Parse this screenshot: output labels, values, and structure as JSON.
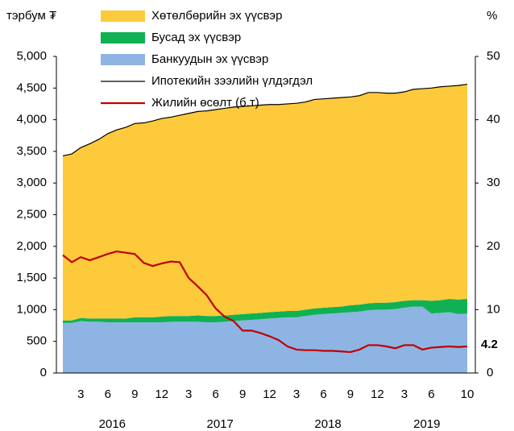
{
  "chart_data": {
    "type": "stacked-area-line",
    "y_unit_label": "тэрбум ₮",
    "y2_unit_label": "%",
    "categories": [
      null,
      null,
      "3",
      null,
      null,
      "6",
      null,
      null,
      "9",
      null,
      null,
      "12",
      null,
      null,
      "3",
      null,
      null,
      "6",
      null,
      null,
      "9",
      null,
      null,
      "12",
      null,
      null,
      "3",
      null,
      null,
      "6",
      null,
      null,
      "9",
      null,
      null,
      "12",
      null,
      null,
      "3",
      null,
      null,
      "6",
      null,
      null,
      null,
      "10"
    ],
    "years": [
      "2016",
      "2017",
      "2018",
      "2019"
    ],
    "series": [
      {
        "name": "Хөтөлбөрийн эх үүсвэр",
        "kind": "area",
        "color": "#fcca3a",
        "values": [
          2600,
          2630,
          2690,
          2760,
          2830,
          2920,
          2980,
          3020,
          3060,
          3070,
          3100,
          3130,
          3140,
          3170,
          3200,
          3220,
          3240,
          3260,
          3270,
          3280,
          3280,
          3280,
          3280,
          3280,
          3270,
          3270,
          3280,
          3280,
          3300,
          3300,
          3300,
          3300,
          3290,
          3300,
          3330,
          3320,
          3310,
          3300,
          3300,
          3330,
          3340,
          3360,
          3370,
          3360,
          3380,
          3390
        ]
      },
      {
        "name": "Бусад эх үүсвэр",
        "kind": "area",
        "color": "#10b153",
        "values": [
          40,
          40,
          50,
          50,
          50,
          60,
          60,
          60,
          80,
          80,
          80,
          90,
          90,
          90,
          90,
          100,
          100,
          100,
          100,
          100,
          100,
          100,
          100,
          100,
          100,
          100,
          100,
          100,
          100,
          100,
          100,
          100,
          110,
          110,
          110,
          110,
          110,
          110,
          110,
          100,
          100,
          200,
          200,
          210,
          230,
          230
        ]
      },
      {
        "name": "Банкуудын эх үүсвэр",
        "kind": "area",
        "color": "#8eb4e3",
        "values": [
          790,
          790,
          820,
          810,
          810,
          800,
          800,
          800,
          800,
          800,
          800,
          800,
          810,
          810,
          810,
          810,
          800,
          800,
          810,
          820,
          830,
          840,
          850,
          860,
          870,
          880,
          880,
          900,
          920,
          930,
          940,
          950,
          960,
          970,
          990,
          1000,
          1000,
          1010,
          1030,
          1050,
          1050,
          940,
          950,
          960,
          930,
          940
        ]
      },
      {
        "name": "Ипотекийн зээлийн үлдэгдэл",
        "kind": "line",
        "color": "#000000",
        "values": [
          3430,
          3460,
          3560,
          3620,
          3690,
          3780,
          3840,
          3880,
          3940,
          3950,
          3980,
          4020,
          4040,
          4070,
          4100,
          4130,
          4140,
          4160,
          4180,
          4200,
          4210,
          4220,
          4230,
          4240,
          4240,
          4250,
          4260,
          4280,
          4320,
          4330,
          4340,
          4350,
          4360,
          4380,
          4430,
          4430,
          4420,
          4420,
          4440,
          4480,
          4490,
          4500,
          4520,
          4530,
          4540,
          4560
        ]
      },
      {
        "name": "Жилийн өсөлт (б.т)",
        "kind": "line",
        "axis": "y2",
        "color": "#c00000",
        "values": [
          18.6,
          17.5,
          18.3,
          17.8,
          18.3,
          18.8,
          19.2,
          19.0,
          18.8,
          17.4,
          16.9,
          17.3,
          17.6,
          17.5,
          15.0,
          13.7,
          12.3,
          10.2,
          8.9,
          8.2,
          6.7,
          6.7,
          6.3,
          5.8,
          5.2,
          4.2,
          3.7,
          3.6,
          3.6,
          3.5,
          3.5,
          3.4,
          3.3,
          3.7,
          4.4,
          4.4,
          4.2,
          3.9,
          4.4,
          4.4,
          3.7,
          4.0,
          4.1,
          4.2,
          4.1,
          4.2
        ]
      }
    ],
    "ylim": [
      0,
      5000
    ],
    "yticks": [
      0,
      500,
      {
        "value": 1000,
        "label": "1,000"
      },
      {
        "value": 1500,
        "label": "1,500"
      },
      {
        "value": 2000,
        "label": "2,000"
      },
      {
        "value": 2500,
        "label": "2,500"
      },
      {
        "value": 3000,
        "label": "3,000"
      },
      {
        "value": 3500,
        "label": "3,500"
      },
      {
        "value": 4000,
        "label": "4,000"
      },
      {
        "value": 4500,
        "label": "4,500"
      },
      {
        "value": 5000,
        "label": "5,000"
      }
    ],
    "y2lim": [
      0,
      50
    ],
    "y2ticks": [
      0,
      10,
      20,
      30,
      40,
      50
    ],
    "grid": false
  }
}
